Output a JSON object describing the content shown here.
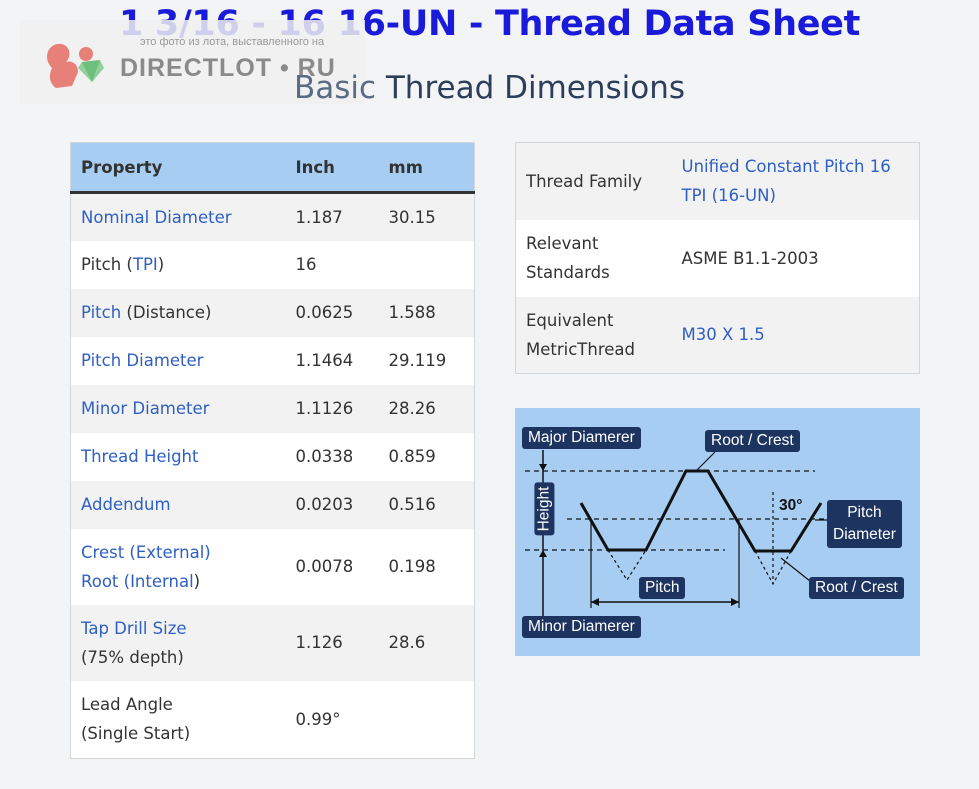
{
  "header": {
    "title": "1 3/16 - 16 16-UN - Thread Data Sheet",
    "subtitle_light": "Basic",
    "subtitle_main": " Thread Dimensions"
  },
  "watermark": {
    "small_text": "это фото из лота, выставленного на",
    "brand": "DIRECTLOT • RU"
  },
  "dimensions_table": {
    "headers": [
      "Property",
      "Inch",
      "mm"
    ],
    "rows": [
      {
        "parts": [
          {
            "text": "Nominal Diameter",
            "link": true
          }
        ],
        "inch": "1.187",
        "mm": "30.15"
      },
      {
        "parts": [
          {
            "text": "Pitch (",
            "link": false
          },
          {
            "text": "TPI",
            "link": true
          },
          {
            "text": ")",
            "link": false
          }
        ],
        "inch": "16",
        "mm": ""
      },
      {
        "parts": [
          {
            "text": "Pitch",
            "link": true
          },
          {
            "text": " (Distance)",
            "link": false
          }
        ],
        "inch": "0.0625",
        "mm": "1.588"
      },
      {
        "parts": [
          {
            "text": "Pitch Diameter",
            "link": true
          }
        ],
        "inch": "1.1464",
        "mm": "29.119"
      },
      {
        "parts": [
          {
            "text": "Minor Diameter",
            "link": true
          }
        ],
        "inch": "1.1126",
        "mm": "28.26"
      },
      {
        "parts": [
          {
            "text": "Thread Height",
            "link": true
          }
        ],
        "inch": "0.0338",
        "mm": "0.859"
      },
      {
        "parts": [
          {
            "text": "Addendum",
            "link": true
          }
        ],
        "inch": "0.0203",
        "mm": "0.516"
      },
      {
        "parts": [
          {
            "text": "Crest (External)",
            "link": true
          },
          {
            "text": "\n",
            "link": false
          },
          {
            "text": "Root (Internal",
            "link": true
          },
          {
            "text": ")",
            "link": false
          }
        ],
        "inch": "0.0078",
        "mm": "0.198"
      },
      {
        "parts": [
          {
            "text": "Tap Drill Size",
            "link": true
          },
          {
            "text": "\n(75% depth)",
            "link": false
          }
        ],
        "inch": "1.126",
        "mm": "28.6"
      },
      {
        "parts": [
          {
            "text": "Lead Angle\n(Single Start)",
            "link": false
          }
        ],
        "inch": "0.99°",
        "mm": ""
      }
    ]
  },
  "info_table": {
    "rows": [
      {
        "key": "Thread Family",
        "value": "Unified Constant Pitch 16 TPI (16-UN)",
        "link": true
      },
      {
        "key": "Relevant Standards",
        "value": "ASME B1.1-2003",
        "link": false
      },
      {
        "key": "Equivalent MetricThread",
        "value": "M30 X 1.5",
        "link": true
      }
    ]
  },
  "diagram": {
    "labels": {
      "major": "Major Diamerer",
      "root_crest_top": "Root / Crest",
      "height": "Height",
      "angle": "30°",
      "pitch_diameter": "Pitch\nDiameter",
      "pitch": "Pitch",
      "root_crest_bottom": "Root / Crest",
      "minor": "Minor Diamerer"
    }
  },
  "colors": {
    "title": "#1a1adb",
    "link": "#2e5fc2",
    "header_bg": "#a7cef2",
    "label_bg": "#1d3461"
  }
}
